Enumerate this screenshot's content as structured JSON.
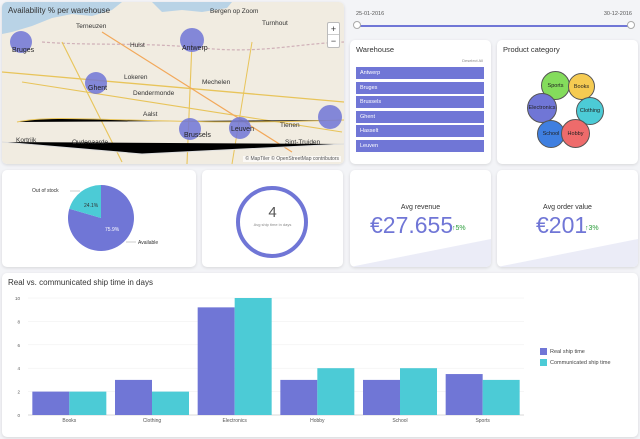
{
  "map": {
    "title": "Availability % per warehouse",
    "zoom_in": "+",
    "zoom_out": "−",
    "attribution": "© MapTiler © OpenStreetMap contributors",
    "cities_major": [
      "Bruges",
      "Antwerp",
      "Ghent",
      "Brussels",
      "Leuven"
    ],
    "cities_minor": [
      "Terneuzen",
      "Bergen op Zoom",
      "Hulst",
      "Turnhout",
      "Lokeren",
      "Dendermonde",
      "Aalst",
      "Kortrijk",
      "Mechelen",
      "Sint-Truiden",
      "Oudenaarde",
      "Tienen"
    ]
  },
  "date_range": {
    "start": "25-01-2016",
    "end": "30-12-2016"
  },
  "warehouse": {
    "title": "Warehouse",
    "select_all": "Deselect All",
    "items": [
      "Antwerp",
      "Bruges",
      "Brussels",
      "Ghent",
      "Hasselt",
      "Leuven"
    ]
  },
  "category": {
    "title": "Product category",
    "items": [
      "Sports",
      "Books",
      "Electronics",
      "Clothing",
      "School",
      "Hobby"
    ]
  },
  "stock": {
    "out_label": "Out of stock",
    "available_label": "Available",
    "out_pct": "24.1%",
    "available_pct": "75.9%"
  },
  "avg_ship": {
    "value": "4",
    "label": "Avg ship time in days"
  },
  "revenue": {
    "title": "Avg revenue",
    "value": "€27.655",
    "delta": "5%"
  },
  "order_value": {
    "title": "Avg order value",
    "value": "€201",
    "delta": "3%"
  },
  "colors": {
    "accent": "#7076d6",
    "teal": "#4ccbd6",
    "positive": "#2a9d3a"
  },
  "chart_data": {
    "type": "bar",
    "title": "Real vs. communicated ship time in days",
    "categories": [
      "Books",
      "Clothing",
      "Electronics",
      "Hobby",
      "School",
      "Sports"
    ],
    "series": [
      {
        "name": "Real ship time",
        "values": [
          2,
          3,
          9.2,
          3,
          3,
          3.5
        ]
      },
      {
        "name": "Communicated ship time",
        "values": [
          2,
          2,
          10,
          4,
          4,
          3
        ]
      }
    ],
    "y_ticks": [
      "0",
      "2",
      "4",
      "6",
      "8",
      "10"
    ],
    "ylim": [
      0,
      10
    ],
    "legend": "right"
  }
}
